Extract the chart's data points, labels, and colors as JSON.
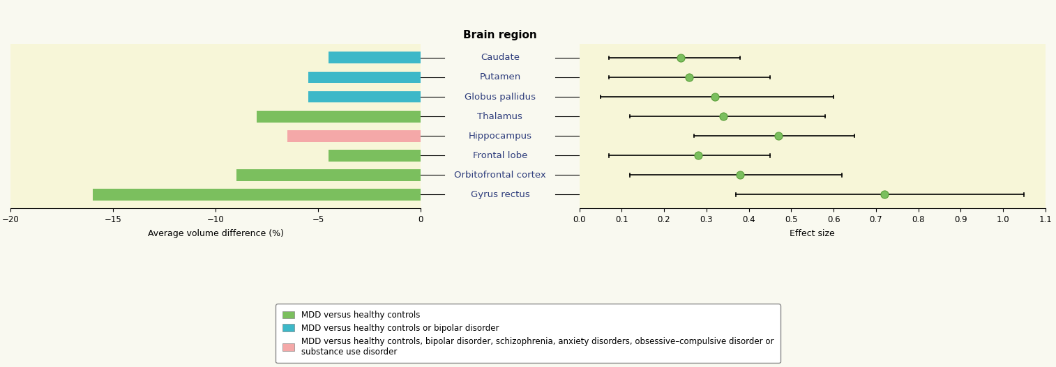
{
  "regions": [
    "Caudate",
    "Putamen",
    "Globus pallidus",
    "Thalamus",
    "Hippocampus",
    "Frontal lobe",
    "Orbitofrontal cortex",
    "Gyrus rectus"
  ],
  "bar_values": [
    -4.5,
    -5.5,
    -5.5,
    -8.0,
    -6.5,
    -4.5,
    -9.0,
    -16.0
  ],
  "bar_colors": [
    "#3db8c8",
    "#3db8c8",
    "#3db8c8",
    "#7bbf5e",
    "#f4a8a8",
    "#7bbf5e",
    "#7bbf5e",
    "#7bbf5e"
  ],
  "effect_sizes": [
    0.24,
    0.26,
    0.32,
    0.34,
    0.47,
    0.28,
    0.38,
    0.72
  ],
  "ci_low": [
    0.07,
    0.07,
    0.05,
    0.12,
    0.27,
    0.07,
    0.12,
    0.37
  ],
  "ci_high": [
    0.38,
    0.45,
    0.6,
    0.58,
    0.65,
    0.45,
    0.62,
    1.05
  ],
  "bar_xlim": [
    -20,
    0
  ],
  "bar_xticks": [
    -20,
    -15,
    -10,
    -5,
    0
  ],
  "effect_xlim": [
    0,
    1.1
  ],
  "effect_xticks": [
    0,
    0.1,
    0.2,
    0.3,
    0.4,
    0.5,
    0.6,
    0.7,
    0.8,
    0.9,
    1.0,
    1.1
  ],
  "title": "Brain region",
  "bar_xlabel": "Average volume difference (%)",
  "effect_xlabel": "Effect size",
  "bg_color": "#f7f6d8",
  "text_color": "#2e3d7c",
  "legend_items": [
    {
      "label": "MDD versus healthy controls",
      "color": "#7bbf5e"
    },
    {
      "label": "MDD versus healthy controls or bipolar disorder",
      "color": "#3db8c8"
    },
    {
      "label": "MDD versus healthy controls, bipolar disorder, schizophrenia, anxiety disorders, obsessive–compulsive disorder or\nsubstance use disorder",
      "color": "#f4a8a8"
    }
  ],
  "dot_color": "#7bbf5e",
  "dot_edge_color": "#5a9e3a"
}
